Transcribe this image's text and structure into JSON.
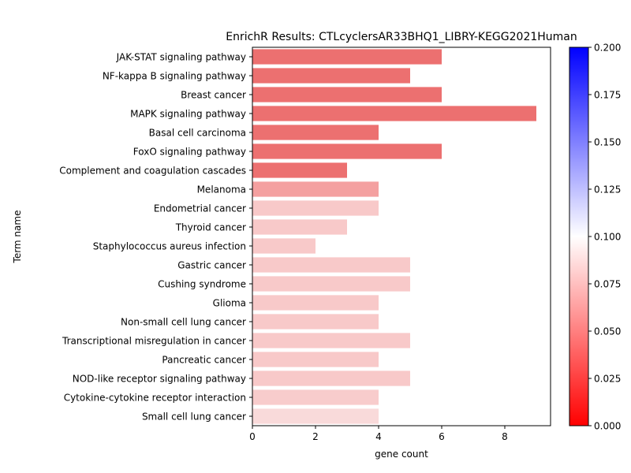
{
  "chart_data": {
    "type": "bar",
    "orientation": "horizontal",
    "title": "EnrichR Results: CTLcyclersAR33BHQ1_LIBRY-KEGG2021Human",
    "xlabel": "gene count",
    "ylabel": "Term name",
    "xlim": [
      0,
      9.45
    ],
    "xticks": [
      "0",
      "2",
      "4",
      "6",
      "8"
    ],
    "grid": false,
    "categories": [
      "JAK-STAT signaling pathway",
      "NF-kappa B signaling pathway",
      "Breast cancer",
      "MAPK signaling pathway",
      "Basal cell carcinoma",
      "FoxO signaling pathway",
      "Complement and coagulation cascades",
      "Melanoma",
      "Endometrial cancer",
      "Thyroid cancer",
      "Staphylococcus aureus infection",
      "Gastric cancer",
      "Cushing syndrome",
      "Glioma",
      "Non-small cell lung cancer",
      "Transcriptional misregulation in cancer",
      "Pancreatic cancer",
      "NOD-like receptor signaling pathway",
      "Cytokine-cytokine receptor interaction",
      "Small cell lung cancer"
    ],
    "values": [
      6,
      5,
      6,
      9,
      4,
      6,
      3,
      4,
      4,
      3,
      2,
      5,
      5,
      4,
      4,
      5,
      4,
      5,
      4,
      4
    ],
    "colors": [
      "#ec7070",
      "#ec7070",
      "#ec7070",
      "#ec7070",
      "#ec7070",
      "#ec7070",
      "#ec7070",
      "#f4a0a0",
      "#f8c9c9",
      "#f8c9c9",
      "#f8c9c9",
      "#f8c9c9",
      "#f8c9c9",
      "#f8c9c9",
      "#f8c9c9",
      "#f8c9c9",
      "#f8c9c9",
      "#f8c9c9",
      "#f8cccc",
      "#f9dada"
    ],
    "colorbar": {
      "range": [
        0,
        0.2
      ],
      "ticks": [
        "0.000",
        "0.025",
        "0.050",
        "0.075",
        "0.100",
        "0.125",
        "0.150",
        "0.175",
        "0.200"
      ],
      "colors": [
        "#ff0000",
        "#ffffff",
        "#0000ff"
      ]
    }
  }
}
